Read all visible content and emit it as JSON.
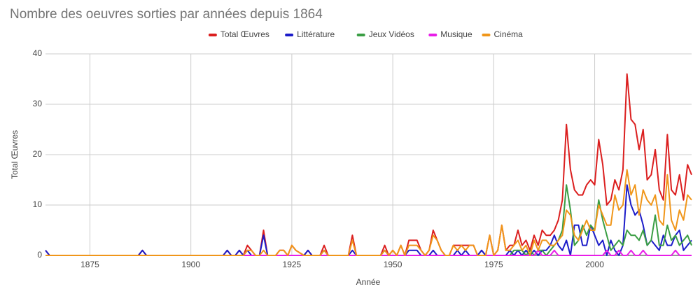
{
  "chart_data": {
    "type": "line",
    "title": "Nombre des oeuvres sorties par années depuis 1864",
    "x_label": "Année",
    "y_label": "Total Œuvres",
    "x": [
      1864,
      1865,
      1887,
      1888,
      1889,
      1908,
      1909,
      1910,
      1911,
      1912,
      1913,
      1914,
      1915,
      1916,
      1917,
      1918,
      1919,
      1921,
      1922,
      1923,
      1924,
      1925,
      1926,
      1928,
      1929,
      1930,
      1932,
      1933,
      1934,
      1939,
      1940,
      1941,
      1947,
      1948,
      1949,
      1950,
      1951,
      1952,
      1953,
      1954,
      1955,
      1956,
      1957,
      1958,
      1959,
      1960,
      1961,
      1962,
      1963,
      1964,
      1965,
      1966,
      1967,
      1968,
      1969,
      1970,
      1971,
      1972,
      1973,
      1974,
      1975,
      1976,
      1977,
      1978,
      1979,
      1980,
      1981,
      1982,
      1983,
      1984,
      1985,
      1986,
      1987,
      1988,
      1989,
      1990,
      1991,
      1992,
      1993,
      1994,
      1995,
      1996,
      1997,
      1998,
      1999,
      2000,
      2001,
      2002,
      2003,
      2004,
      2005,
      2006,
      2007,
      2008,
      2009,
      2010,
      2011,
      2012,
      2013,
      2014,
      2015,
      2016,
      2017,
      2018,
      2019,
      2020,
      2021,
      2022,
      2023,
      2024
    ],
    "series": [
      {
        "name": "Total Œuvres",
        "color": "#db1f1f",
        "values": [
          1,
          0,
          0,
          1,
          0,
          0,
          1,
          0,
          0,
          1,
          0,
          2,
          1,
          0,
          0,
          5,
          0,
          0,
          1,
          1,
          0,
          2,
          1,
          0,
          1,
          0,
          0,
          2,
          0,
          0,
          4,
          0,
          0,
          2,
          0,
          1,
          0,
          2,
          0,
          3,
          3,
          3,
          1,
          0,
          1,
          5,
          3,
          1,
          0,
          0,
          2,
          2,
          2,
          2,
          2,
          2,
          0,
          1,
          0,
          4,
          0,
          1,
          6,
          1,
          2,
          2,
          5,
          2,
          3,
          1,
          4,
          2,
          5,
          4,
          4,
          5,
          7,
          11,
          26,
          17,
          13,
          12,
          12,
          14,
          15,
          14,
          23,
          18,
          10,
          11,
          15,
          13,
          17,
          36,
          27,
          26,
          21,
          25,
          15,
          16,
          21,
          13,
          11,
          24,
          13,
          12,
          16,
          11,
          18,
          16
        ]
      },
      {
        "name": "Littérature",
        "color": "#1c1cc9",
        "values": [
          1,
          0,
          0,
          1,
          0,
          0,
          1,
          0,
          0,
          1,
          0,
          1,
          0,
          0,
          0,
          4,
          0,
          0,
          0,
          0,
          0,
          0,
          0,
          0,
          1,
          0,
          0,
          1,
          0,
          0,
          1,
          0,
          0,
          1,
          0,
          0,
          0,
          0,
          0,
          1,
          1,
          1,
          0,
          0,
          0,
          1,
          0,
          0,
          0,
          0,
          0,
          1,
          0,
          1,
          0,
          0,
          0,
          1,
          0,
          0,
          0,
          0,
          0,
          0,
          1,
          0,
          1,
          0,
          1,
          0,
          1,
          0,
          1,
          1,
          2,
          4,
          2,
          1,
          3,
          0,
          6,
          6,
          2,
          2,
          6,
          4,
          2,
          3,
          0,
          3,
          1,
          0,
          2,
          14,
          10,
          8,
          9,
          6,
          2,
          3,
          2,
          1,
          4,
          2,
          2,
          4,
          5,
          1,
          2,
          3
        ]
      },
      {
        "name": "Jeux Vidéos",
        "color": "#3a9e44",
        "values": [
          0,
          0,
          0,
          0,
          0,
          0,
          0,
          0,
          0,
          0,
          0,
          0,
          0,
          0,
          0,
          0,
          0,
          0,
          0,
          0,
          0,
          0,
          0,
          0,
          0,
          0,
          0,
          0,
          0,
          0,
          0,
          0,
          0,
          0,
          0,
          0,
          0,
          0,
          0,
          0,
          0,
          0,
          0,
          0,
          0,
          0,
          0,
          0,
          0,
          0,
          0,
          0,
          0,
          0,
          0,
          0,
          0,
          0,
          0,
          0,
          0,
          0,
          0,
          0,
          0,
          1,
          1,
          1,
          0,
          1,
          0,
          1,
          1,
          0,
          1,
          2,
          3,
          5,
          14,
          9,
          2,
          3,
          6,
          4,
          6,
          5,
          11,
          7,
          4,
          1,
          2,
          3,
          2,
          5,
          4,
          4,
          3,
          5,
          2,
          3,
          8,
          2,
          2,
          6,
          3,
          4,
          2,
          3,
          4,
          2
        ]
      },
      {
        "name": "Musique",
        "color": "#e81ee8",
        "values": [
          0,
          0,
          0,
          0,
          0,
          0,
          0,
          0,
          0,
          0,
          0,
          0,
          0,
          0,
          0,
          0,
          0,
          0,
          0,
          0,
          0,
          0,
          0,
          0,
          0,
          0,
          0,
          0,
          0,
          0,
          0,
          0,
          0,
          0,
          0,
          0,
          0,
          0,
          0,
          0,
          0,
          0,
          0,
          0,
          0,
          0,
          0,
          0,
          0,
          0,
          0,
          0,
          0,
          0,
          0,
          0,
          0,
          0,
          0,
          0,
          0,
          0,
          0,
          0,
          0,
          0,
          0,
          0,
          0,
          0,
          0,
          1,
          0,
          0,
          0,
          1,
          0,
          0,
          0,
          0,
          0,
          0,
          0,
          0,
          0,
          0,
          0,
          0,
          1,
          0,
          0,
          1,
          0,
          0,
          1,
          0,
          0,
          1,
          0,
          0,
          0,
          0,
          0,
          0,
          0,
          1,
          0,
          0,
          0,
          0
        ]
      },
      {
        "name": "Cinéma",
        "color": "#f0961a",
        "values": [
          0,
          0,
          0,
          0,
          0,
          0,
          0,
          0,
          0,
          0,
          0,
          1,
          1,
          0,
          0,
          1,
          0,
          0,
          1,
          1,
          0,
          2,
          1,
          0,
          0,
          0,
          0,
          1,
          0,
          0,
          3,
          0,
          0,
          1,
          0,
          1,
          0,
          2,
          0,
          2,
          2,
          2,
          1,
          0,
          1,
          4,
          3,
          1,
          0,
          0,
          2,
          1,
          2,
          1,
          2,
          2,
          0,
          0,
          0,
          4,
          0,
          1,
          6,
          1,
          1,
          2,
          3,
          1,
          2,
          0,
          3,
          1,
          3,
          3,
          2,
          2,
          3,
          4,
          9,
          8,
          4,
          3,
          5,
          7,
          5,
          5,
          10,
          8,
          6,
          6,
          12,
          9,
          10,
          17,
          12,
          14,
          8,
          13,
          11,
          10,
          12,
          7,
          6,
          16,
          7,
          5,
          9,
          7,
          12,
          11
        ]
      }
    ],
    "xlim": [
      1864,
      2024
    ],
    "xticks": [
      1875,
      1900,
      1925,
      1950,
      1975,
      2000
    ],
    "ylim": [
      0,
      40
    ],
    "yticks": [
      0,
      10,
      20,
      30,
      40
    ],
    "grid": true,
    "legend": "top"
  }
}
